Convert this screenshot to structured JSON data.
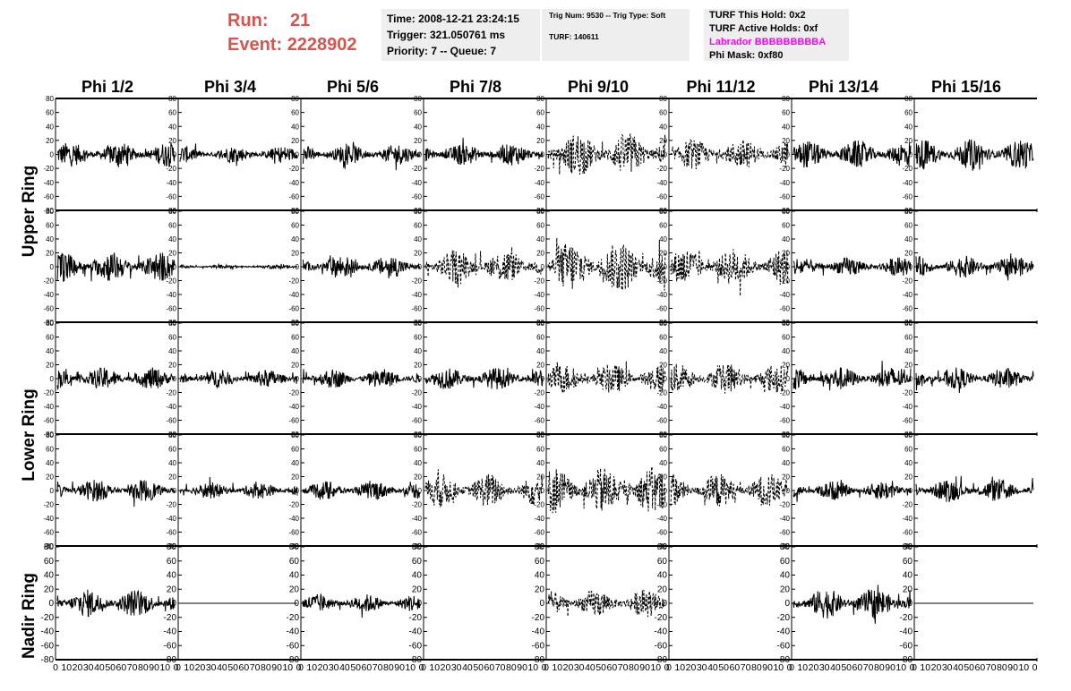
{
  "run_label": "Run:",
  "run_value": "21",
  "event_label": "Event:",
  "event_value": "2228902",
  "time_text": "Time: 2008-12-21 23:24:15",
  "trigger_text": "Trigger: 321.050761 ms",
  "priority_text": "Priority: 7 -- Queue: 7",
  "trig_num_text": "Trig Num: 9530 -- Trig Type: Soft",
  "turf_text": "TURF: 140611",
  "turf_this_hold": "TURF This Hold: 0x2",
  "turf_active_holds": "TURF Active Holds: 0xf",
  "labrador_text": "Labrador BBBBBBBBBA",
  "phi_mask": "Phi Mask: 0xf80",
  "colors": {
    "run_text": "#d9534f",
    "labrador": "#ff00ff",
    "panel_bg": "#eeeeee"
  },
  "chart_data": {
    "type": "line",
    "columns": [
      "Phi 1/2",
      "Phi 3/4",
      "Phi 5/6",
      "Phi 7/8",
      "Phi 9/10",
      "Phi 11/12",
      "Phi 13/14",
      "Phi 15/16"
    ],
    "rows": [
      "Upper Ring",
      "Lower Ring",
      "Nadir Ring"
    ],
    "panel_rows": [
      "Upper Ring",
      "Upper Ring",
      "Lower Ring",
      "Lower Ring",
      "Nadir Ring"
    ],
    "ylim": [
      -80,
      80
    ],
    "xlim": [
      0,
      100
    ],
    "yticks": [
      80,
      60,
      40,
      20,
      0,
      -20,
      -40,
      -60,
      -80
    ],
    "xticks": [
      "0",
      "10",
      "20",
      "30",
      "40",
      "50",
      "60",
      "70",
      "80",
      "90",
      "10",
      "0"
    ],
    "grid": false,
    "panels": [
      [
        {
          "amp": 18,
          "dash": false
        },
        {
          "amp": 12,
          "dash": false
        },
        {
          "amp": 15,
          "dash": false
        },
        {
          "amp": 16,
          "dash": false
        },
        {
          "amp": 32,
          "dash": true
        },
        {
          "amp": 22,
          "dash": true
        },
        {
          "amp": 20,
          "dash": false
        },
        {
          "amp": 22,
          "dash": false
        }
      ],
      [
        {
          "amp": 22,
          "dash": false
        },
        {
          "amp": 3,
          "dash": false
        },
        {
          "amp": 17,
          "dash": false
        },
        {
          "amp": 25,
          "dash": true
        },
        {
          "amp": 38,
          "dash": true
        },
        {
          "amp": 28,
          "dash": true
        },
        {
          "amp": 14,
          "dash": false
        },
        {
          "amp": 16,
          "dash": false
        }
      ],
      [
        {
          "amp": 16,
          "dash": false
        },
        {
          "amp": 13,
          "dash": false
        },
        {
          "amp": 14,
          "dash": false
        },
        {
          "amp": 16,
          "dash": false
        },
        {
          "amp": 22,
          "dash": true
        },
        {
          "amp": 22,
          "dash": true
        },
        {
          "amp": 17,
          "dash": false
        },
        {
          "amp": 16,
          "dash": false
        }
      ],
      [
        {
          "amp": 16,
          "dash": false
        },
        {
          "amp": 12,
          "dash": false
        },
        {
          "amp": 14,
          "dash": false
        },
        {
          "amp": 25,
          "dash": true
        },
        {
          "amp": 35,
          "dash": true
        },
        {
          "amp": 25,
          "dash": true
        },
        {
          "amp": 14,
          "dash": false
        },
        {
          "amp": 17,
          "dash": false
        }
      ],
      [
        {
          "amp": 20,
          "dash": false
        },
        {
          "amp": 0,
          "dash": false
        },
        {
          "amp": 13,
          "dash": false
        },
        {
          "amp": null,
          "dash": false
        },
        {
          "amp": 20,
          "dash": true
        },
        {
          "amp": null,
          "dash": false
        },
        {
          "amp": 22,
          "dash": false
        },
        {
          "amp": 0,
          "dash": false
        }
      ]
    ]
  }
}
